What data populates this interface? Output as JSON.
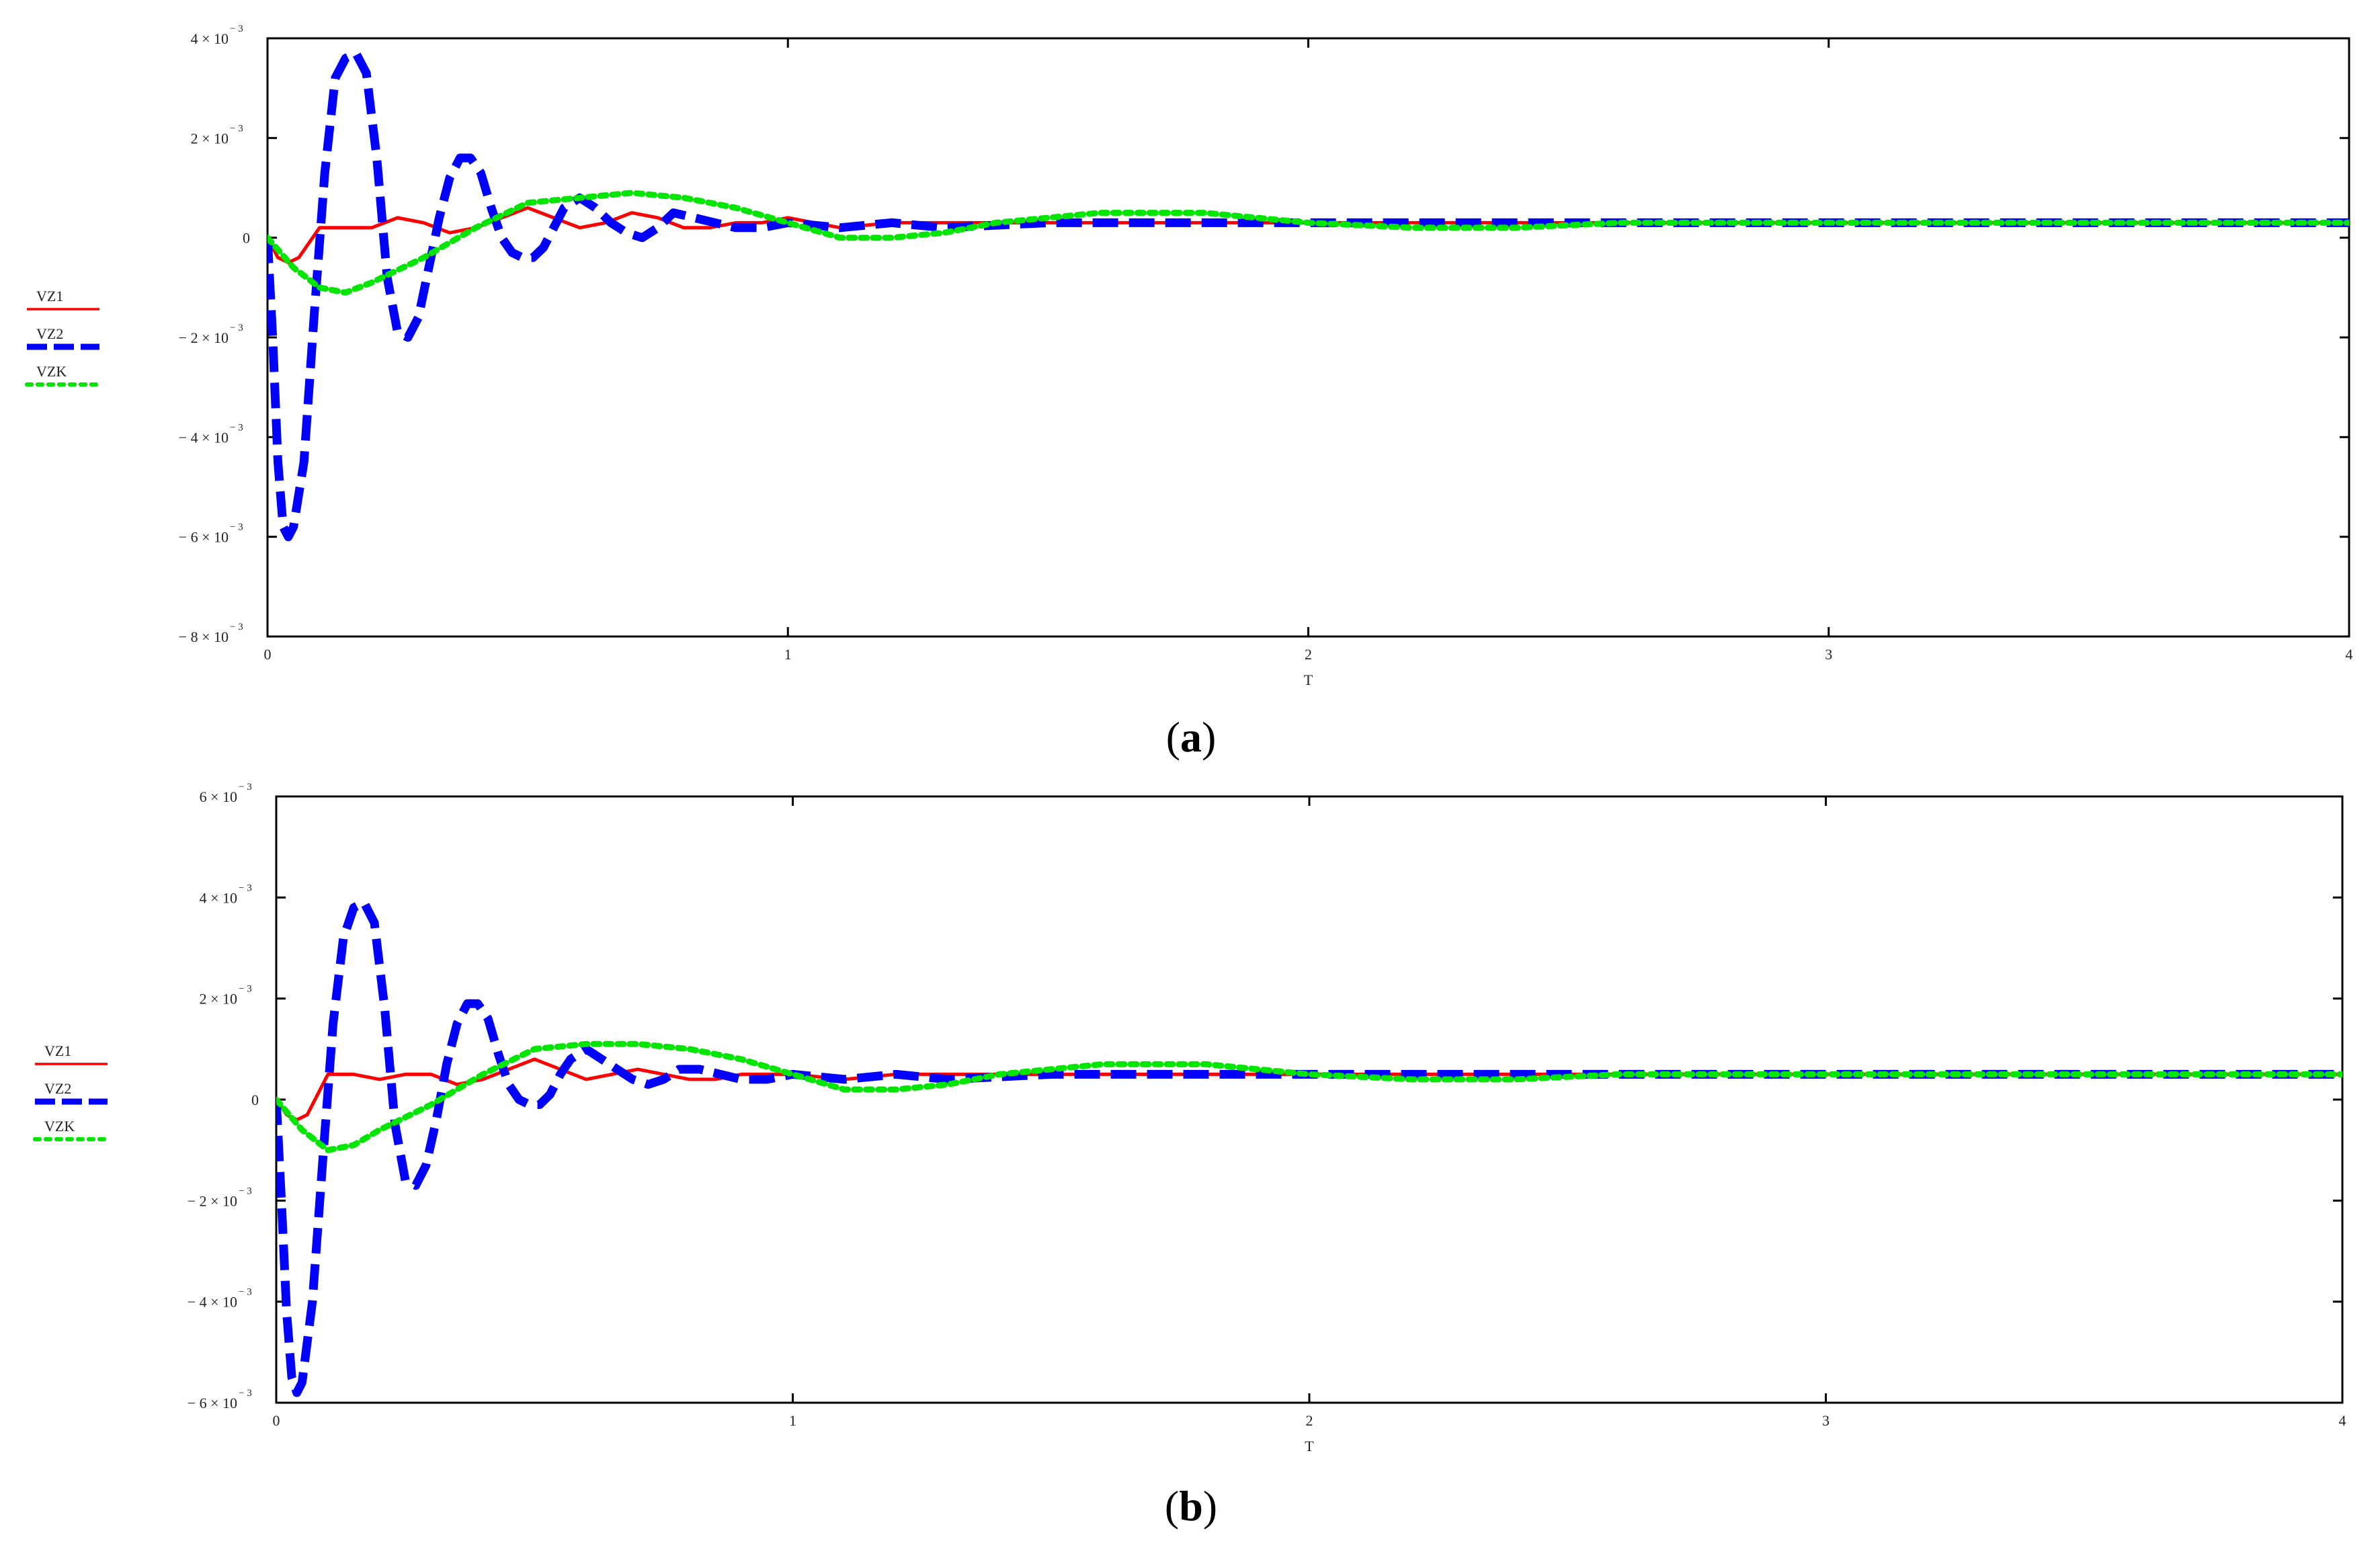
{
  "chart_data": [
    {
      "type": "line",
      "panel_label": "a",
      "xlabel": "T",
      "xlim": [
        0,
        4
      ],
      "ylim": [
        -0.008,
        0.004
      ],
      "x_ticks": [
        {
          "value": 0,
          "label": "0"
        },
        {
          "value": 1,
          "label": "1"
        },
        {
          "value": 2,
          "label": "2"
        },
        {
          "value": 3,
          "label": "3"
        },
        {
          "value": 4,
          "label": "4"
        }
      ],
      "y_ticks": [
        {
          "value": 0.004,
          "label": "4 × 10",
          "exp": "− 3"
        },
        {
          "value": 0.002,
          "label": "2 × 10",
          "exp": "− 3"
        },
        {
          "value": 0,
          "label": "0",
          "exp": ""
        },
        {
          "value": -0.002,
          "label": "− 2 × 10",
          "exp": "− 3"
        },
        {
          "value": -0.004,
          "label": "− 4 × 10",
          "exp": "− 3"
        },
        {
          "value": -0.006,
          "label": "− 6 × 10",
          "exp": "− 3"
        },
        {
          "value": -0.008,
          "label": "− 8 × 10",
          "exp": "− 3"
        }
      ],
      "legend_position": "left",
      "series": [
        {
          "name": "VZ1",
          "color": "#ff0000",
          "style": "solid",
          "x": [
            0,
            0.02,
            0.04,
            0.06,
            0.1,
            0.15,
            0.2,
            0.25,
            0.3,
            0.35,
            0.4,
            0.45,
            0.5,
            0.55,
            0.6,
            0.65,
            0.7,
            0.75,
            0.8,
            0.85,
            0.9,
            0.95,
            1.0,
            1.1,
            1.2,
            1.3,
            1.4,
            1.6,
            1.8,
            2.0,
            2.5,
            3.0,
            3.5,
            4.0
          ],
          "y": [
            0,
            -0.0004,
            -0.0005,
            -0.0004,
            0.0002,
            0.0002,
            0.0002,
            0.0004,
            0.0003,
            0.0001,
            0.0002,
            0.0004,
            0.0006,
            0.0004,
            0.0002,
            0.0003,
            0.0005,
            0.0004,
            0.0002,
            0.0002,
            0.0003,
            0.0003,
            0.0004,
            0.0002,
            0.0003,
            0.0003,
            0.0003,
            0.0003,
            0.0003,
            0.0003,
            0.0003,
            0.0003,
            0.0003,
            0.0003
          ]
        },
        {
          "name": "VZ2",
          "color": "#0000ff",
          "style": "dashed",
          "x": [
            0,
            0.01,
            0.02,
            0.03,
            0.04,
            0.05,
            0.07,
            0.09,
            0.11,
            0.13,
            0.15,
            0.17,
            0.19,
            0.21,
            0.23,
            0.25,
            0.27,
            0.29,
            0.31,
            0.33,
            0.35,
            0.37,
            0.39,
            0.41,
            0.43,
            0.45,
            0.47,
            0.49,
            0.51,
            0.53,
            0.55,
            0.57,
            0.6,
            0.63,
            0.66,
            0.69,
            0.72,
            0.75,
            0.78,
            0.82,
            0.86,
            0.9,
            0.95,
            1.0,
            1.1,
            1.2,
            1.3,
            1.5,
            1.8,
            2.0,
            2.5,
            3.0,
            3.5,
            4.0
          ],
          "y": [
            0,
            -0.002,
            -0.0045,
            -0.0058,
            -0.006,
            -0.0058,
            -0.0045,
            -0.0015,
            0.0013,
            0.0032,
            0.0036,
            0.0037,
            0.0033,
            0.0016,
            -0.0008,
            -0.0019,
            -0.002,
            -0.0016,
            -0.0006,
            0.0004,
            0.0012,
            0.0016,
            0.0016,
            0.0013,
            0.0006,
            0.0,
            -0.0003,
            -0.0004,
            -0.0004,
            -0.0002,
            0.0002,
            0.0006,
            0.0008,
            0.0006,
            0.0003,
            0.0001,
            0.0,
            0.0002,
            0.0005,
            0.0004,
            0.0003,
            0.0002,
            0.0002,
            0.0003,
            0.0002,
            0.0003,
            0.0002,
            0.0003,
            0.0003,
            0.0003,
            0.0003,
            0.0003,
            0.0003,
            0.0003
          ]
        },
        {
          "name": "VZK",
          "color": "#00e600",
          "style": "dotted",
          "x": [
            0,
            0.05,
            0.1,
            0.15,
            0.2,
            0.3,
            0.4,
            0.5,
            0.6,
            0.7,
            0.8,
            0.9,
            1.0,
            1.1,
            1.2,
            1.3,
            1.4,
            1.5,
            1.6,
            1.7,
            1.8,
            1.9,
            2.0,
            2.2,
            2.4,
            2.6,
            2.8,
            3.0,
            3.5,
            4.0
          ],
          "y": [
            0,
            -0.0006,
            -0.001,
            -0.0011,
            -0.0009,
            -0.0004,
            0.0002,
            0.0007,
            0.0008,
            0.0009,
            0.0008,
            0.0006,
            0.0003,
            0.0,
            0.0,
            0.0001,
            0.0003,
            0.0004,
            0.0005,
            0.0005,
            0.0005,
            0.0004,
            0.0003,
            0.0002,
            0.0002,
            0.0003,
            0.0003,
            0.0003,
            0.0003,
            0.0003
          ]
        }
      ]
    },
    {
      "type": "line",
      "panel_label": "b",
      "xlabel": "T",
      "xlim": [
        0,
        4
      ],
      "ylim": [
        -0.006,
        0.006
      ],
      "x_ticks": [
        {
          "value": 0,
          "label": "0"
        },
        {
          "value": 1,
          "label": "1"
        },
        {
          "value": 2,
          "label": "2"
        },
        {
          "value": 3,
          "label": "3"
        },
        {
          "value": 4,
          "label": "4"
        }
      ],
      "y_ticks": [
        {
          "value": 0.006,
          "label": "6 × 10",
          "exp": "− 3"
        },
        {
          "value": 0.004,
          "label": "4 × 10",
          "exp": "− 3"
        },
        {
          "value": 0.002,
          "label": "2 × 10",
          "exp": "− 3"
        },
        {
          "value": 0,
          "label": "0",
          "exp": ""
        },
        {
          "value": -0.002,
          "label": "− 2 × 10",
          "exp": "− 3"
        },
        {
          "value": -0.004,
          "label": "− 4 × 10",
          "exp": "− 3"
        },
        {
          "value": -0.006,
          "label": "− 6 × 10",
          "exp": "− 3"
        }
      ],
      "legend_position": "left",
      "series": [
        {
          "name": "VZ1",
          "color": "#ff0000",
          "style": "solid",
          "x": [
            0,
            0.02,
            0.04,
            0.06,
            0.1,
            0.15,
            0.2,
            0.25,
            0.3,
            0.35,
            0.4,
            0.45,
            0.5,
            0.55,
            0.6,
            0.65,
            0.7,
            0.75,
            0.8,
            0.85,
            0.9,
            0.95,
            1.0,
            1.1,
            1.2,
            1.3,
            1.4,
            1.6,
            1.8,
            2.0,
            2.5,
            3.0,
            3.5,
            4.0
          ],
          "y": [
            0,
            -0.0003,
            -0.0004,
            -0.0003,
            0.0005,
            0.0005,
            0.0004,
            0.0005,
            0.0005,
            0.0003,
            0.0004,
            0.0006,
            0.0008,
            0.0006,
            0.0004,
            0.0005,
            0.0006,
            0.0005,
            0.0004,
            0.0004,
            0.0005,
            0.0005,
            0.0005,
            0.0004,
            0.0005,
            0.0005,
            0.0005,
            0.0005,
            0.0005,
            0.0005,
            0.0005,
            0.0005,
            0.0005,
            0.0005
          ]
        },
        {
          "name": "VZ2",
          "color": "#0000ff",
          "style": "dashed",
          "x": [
            0,
            0.01,
            0.02,
            0.03,
            0.04,
            0.05,
            0.07,
            0.09,
            0.11,
            0.13,
            0.15,
            0.17,
            0.19,
            0.21,
            0.23,
            0.25,
            0.27,
            0.29,
            0.31,
            0.33,
            0.35,
            0.37,
            0.39,
            0.41,
            0.43,
            0.45,
            0.47,
            0.49,
            0.51,
            0.53,
            0.55,
            0.57,
            0.6,
            0.63,
            0.66,
            0.69,
            0.72,
            0.75,
            0.78,
            0.82,
            0.86,
            0.9,
            0.95,
            1.0,
            1.1,
            1.2,
            1.3,
            1.5,
            1.8,
            2.0,
            2.5,
            3.0,
            3.5,
            4.0
          ],
          "y": [
            0,
            -0.002,
            -0.0042,
            -0.0055,
            -0.0058,
            -0.0056,
            -0.004,
            -0.0012,
            0.0015,
            0.0032,
            0.0038,
            0.0039,
            0.0035,
            0.0018,
            -0.0005,
            -0.0016,
            -0.0017,
            -0.0013,
            -0.0004,
            0.0007,
            0.0015,
            0.0019,
            0.0019,
            0.0016,
            0.0009,
            0.0003,
            0.0,
            -0.0001,
            -0.0001,
            0.0001,
            0.0005,
            0.0008,
            0.001,
            0.0008,
            0.0006,
            0.0004,
            0.0003,
            0.0004,
            0.0006,
            0.0006,
            0.0005,
            0.0004,
            0.0004,
            0.0005,
            0.0004,
            0.0005,
            0.0004,
            0.0005,
            0.0005,
            0.0005,
            0.0005,
            0.0005,
            0.0005,
            0.0005
          ]
        },
        {
          "name": "VZK",
          "color": "#00e600",
          "style": "dotted",
          "x": [
            0,
            0.05,
            0.1,
            0.15,
            0.2,
            0.3,
            0.4,
            0.5,
            0.6,
            0.7,
            0.8,
            0.9,
            1.0,
            1.1,
            1.2,
            1.3,
            1.4,
            1.5,
            1.6,
            1.7,
            1.8,
            1.9,
            2.0,
            2.2,
            2.4,
            2.6,
            2.8,
            3.0,
            3.5,
            4.0
          ],
          "y": [
            0,
            -0.0006,
            -0.001,
            -0.0009,
            -0.0006,
            -0.0001,
            0.0005,
            0.001,
            0.0011,
            0.0011,
            0.001,
            0.0008,
            0.0005,
            0.0002,
            0.0002,
            0.0003,
            0.0005,
            0.0006,
            0.0007,
            0.0007,
            0.0007,
            0.0006,
            0.0005,
            0.0004,
            0.0004,
            0.0005,
            0.0005,
            0.0005,
            0.0005,
            0.0005
          ]
        }
      ]
    }
  ]
}
